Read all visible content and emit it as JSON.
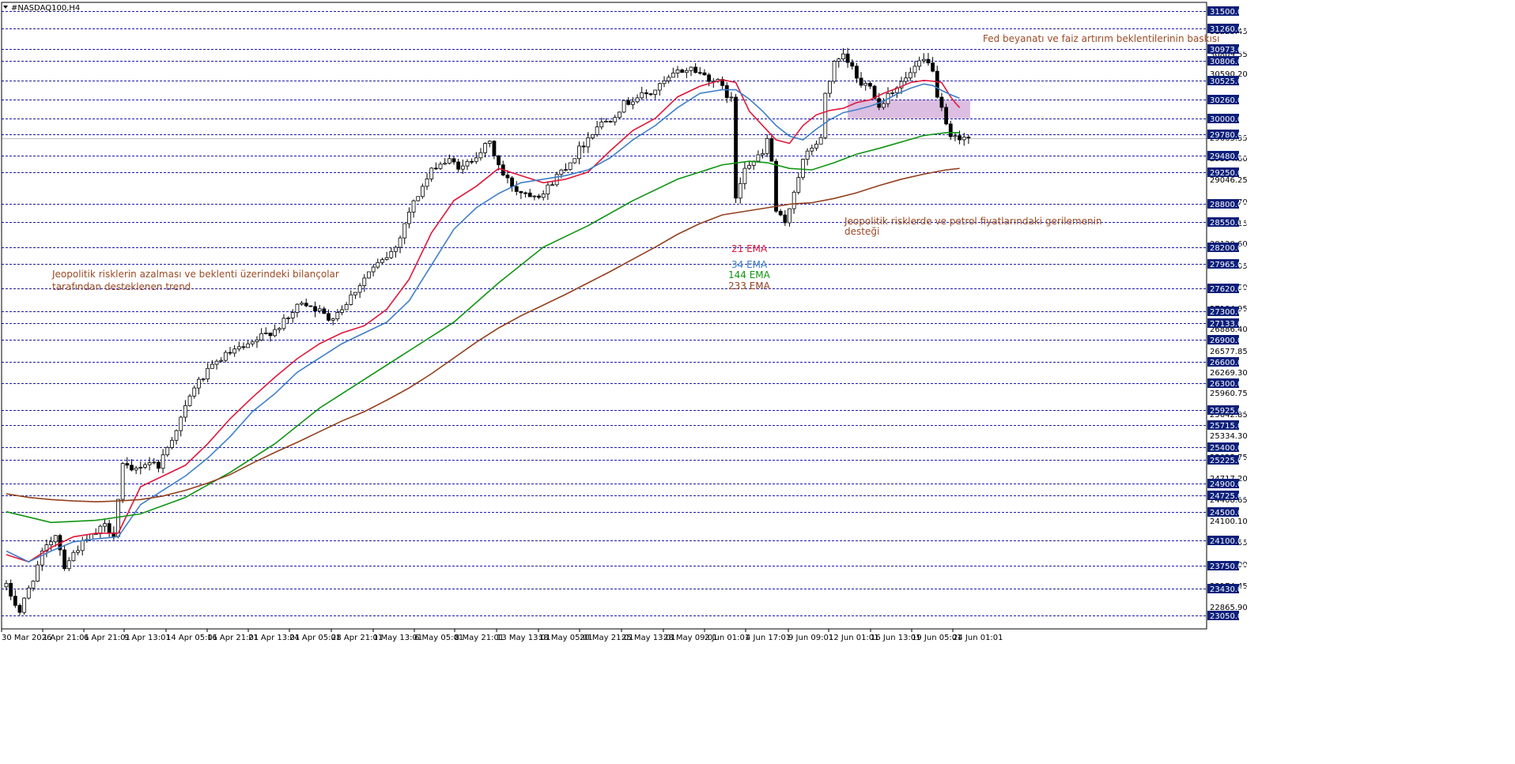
{
  "window": {
    "symbol_label": "#NASDAQ100,H4"
  },
  "chart_data": {
    "type": "candlestick",
    "title": "#NASDAQ100,H4",
    "xlabel": "",
    "ylabel": "",
    "ylim": [
      22800,
      31600
    ],
    "grid": false,
    "colors": {
      "background": "#ffffff",
      "candle": "#000000",
      "level_line": "#1a1aa8",
      "tag_bg": "#0b1f7a",
      "tag_text": "#ffffff",
      "ema21": "#e0173b",
      "ema34": "#3f7fc8",
      "ema144": "#0f9412",
      "ema233": "#93401e",
      "zone_fill": "#d6b3dd",
      "annotation": "#9c4a24",
      "current_price_line": "#bdbdbd"
    },
    "x_ticks": [
      "30 Mar 2026",
      "1 Apr 21:01",
      "6 Apr 21:01",
      "9 Apr 13:01",
      "14 Apr 05:01",
      "16 Apr 21:01",
      "21 Apr 13:01",
      "24 Apr 05:01",
      "28 Apr 21:01",
      "1 May 13:01",
      "6 May 05:01",
      "8 May 21:01",
      "13 May 13:01",
      "18 May 05:01",
      "20 May 21:01",
      "25 May 13:01",
      "28 May 09:01",
      "2 Jun 01:01",
      "4 Jun 17:01",
      "9 Jun 09:01",
      "12 Jun 01:01",
      "16 Jun 13:01",
      "19 Jun 05:01",
      "24 Jun 01:01"
    ],
    "y_axis_labels": [
      "31223.45",
      "30809.55",
      "30590.20",
      "29663.35",
      "29354.80",
      "29046.25",
      "28737.70",
      "28429.15",
      "28120.60",
      "27812.05",
      "27503.50",
      "27194.95",
      "26886.40",
      "26577.85",
      "26269.30",
      "25960.75",
      "25642.85",
      "25334.30",
      "25025.75",
      "24717.20",
      "24408.65",
      "24100.10",
      "23791.55",
      "23483.00",
      "23174.45",
      "22865.90"
    ],
    "levels": [
      31500.0,
      31260.0,
      30973.0,
      30806.0,
      30525.0,
      30260.0,
      30000.0,
      29780.0,
      29480.0,
      29250.0,
      28800.0,
      28550.0,
      28200.0,
      27965.0,
      27620.0,
      27300.0,
      27133.0,
      26900.0,
      26600.0,
      26300.0,
      25925.0,
      25715.0,
      25400.0,
      25225.0,
      24900.0,
      24725.0,
      24500.0,
      24100.0,
      23750.0,
      23430.0,
      23050.0
    ],
    "level_labels": [
      "31500.00",
      "31260.00",
      "30973.00",
      "30806.00",
      "30525.00",
      "30260.00",
      "30000.00",
      "29780.00",
      "29480.00",
      "29250.00",
      "28800.00",
      "28550.00",
      "28200.00",
      "27965.00",
      "27620.00",
      "27300.00",
      "27133.00",
      "26900.00",
      "26600.00",
      "26300.00",
      "25925.00",
      "25715.00",
      "25400.00",
      "25225.00",
      "24900.00",
      "24725.00",
      "24500.00",
      "24100.00",
      "23750.00",
      "23430.00",
      "23050.00"
    ],
    "current_price": 29720,
    "resistance_zone": {
      "low": 30000,
      "high": 30260
    },
    "price_path": [
      [
        0,
        23450
      ],
      [
        3,
        23100
      ],
      [
        8,
        23900
      ],
      [
        11,
        24200
      ],
      [
        13,
        23750
      ],
      [
        16,
        24000
      ],
      [
        19,
        24150
      ],
      [
        22,
        24300
      ],
      [
        24,
        24200
      ],
      [
        26,
        25150
      ],
      [
        28,
        25050
      ],
      [
        30,
        25150
      ],
      [
        32,
        25200
      ],
      [
        34,
        25150
      ],
      [
        36,
        25400
      ],
      [
        39,
        25800
      ],
      [
        42,
        26250
      ],
      [
        45,
        26450
      ],
      [
        48,
        26650
      ],
      [
        51,
        26750
      ],
      [
        54,
        26800
      ],
      [
        57,
        26950
      ],
      [
        60,
        27050
      ],
      [
        63,
        27200
      ],
      [
        66,
        27450
      ],
      [
        69,
        27350
      ],
      [
        72,
        27200
      ],
      [
        75,
        27350
      ],
      [
        78,
        27600
      ],
      [
        81,
        27850
      ],
      [
        84,
        28000
      ],
      [
        87,
        28200
      ],
      [
        90,
        28700
      ],
      [
        93,
        29050
      ],
      [
        96,
        29350
      ],
      [
        99,
        29400
      ],
      [
        102,
        29300
      ],
      [
        105,
        29500
      ],
      [
        108,
        29650
      ],
      [
        111,
        29200
      ],
      [
        114,
        29000
      ],
      [
        117,
        28950
      ],
      [
        120,
        28950
      ],
      [
        123,
        29200
      ],
      [
        126,
        29400
      ],
      [
        129,
        29650
      ],
      [
        132,
        29900
      ],
      [
        135,
        30000
      ],
      [
        138,
        30200
      ],
      [
        141,
        30300
      ],
      [
        144,
        30350
      ],
      [
        147,
        30500
      ],
      [
        150,
        30650
      ],
      [
        153,
        30700
      ],
      [
        156,
        30600
      ],
      [
        159,
        30500
      ],
      [
        162,
        30250
      ],
      [
        163,
        28900
      ],
      [
        165,
        29350
      ],
      [
        167,
        29400
      ],
      [
        169,
        29500
      ],
      [
        170,
        29700
      ],
      [
        171,
        29400
      ],
      [
        172,
        28700
      ],
      [
        174,
        28500
      ],
      [
        176,
        29000
      ],
      [
        178,
        29400
      ],
      [
        180,
        29600
      ],
      [
        182,
        29700
      ],
      [
        183,
        30350
      ],
      [
        185,
        30750
      ],
      [
        187,
        30850
      ],
      [
        189,
        30700
      ],
      [
        191,
        30450
      ],
      [
        193,
        30500
      ],
      [
        195,
        30150
      ],
      [
        197,
        30350
      ],
      [
        199,
        30450
      ],
      [
        201,
        30550
      ],
      [
        203,
        30700
      ],
      [
        205,
        30800
      ],
      [
        207,
        30700
      ],
      [
        208,
        30250
      ],
      [
        209,
        30100
      ],
      [
        210,
        29900
      ],
      [
        211,
        29700
      ],
      [
        213,
        29750
      ],
      [
        215,
        29720
      ]
    ],
    "series": [
      {
        "name": "21 EMA",
        "color": "#e0173b",
        "x": [
          0,
          5,
          10,
          15,
          20,
          25,
          30,
          35,
          40,
          45,
          50,
          55,
          60,
          65,
          70,
          75,
          80,
          85,
          90,
          95,
          100,
          105,
          110,
          115,
          120,
          125,
          130,
          135,
          140,
          145,
          150,
          155,
          160,
          163,
          166,
          169,
          172,
          175,
          178,
          181,
          184,
          187,
          190,
          193,
          196,
          199,
          202,
          205,
          207,
          209,
          210,
          211,
          212,
          213
        ],
        "y": [
          23900,
          23800,
          24000,
          24150,
          24200,
          24200,
          24850,
          25000,
          25150,
          25450,
          25800,
          26100,
          26380,
          26640,
          26850,
          27000,
          27100,
          27330,
          27750,
          28400,
          28850,
          29050,
          29300,
          29200,
          29100,
          29150,
          29250,
          29550,
          29830,
          30000,
          30300,
          30450,
          30540,
          30500,
          30100,
          29900,
          29700,
          29650,
          29900,
          30050,
          30110,
          30140,
          30220,
          30260,
          30350,
          30420,
          30500,
          30530,
          30520,
          30500,
          30400,
          30300,
          30220,
          30150
        ]
      },
      {
        "name": "34 EMA",
        "color": "#3f7fc8",
        "x": [
          0,
          5,
          10,
          15,
          20,
          25,
          30,
          35,
          40,
          45,
          50,
          55,
          60,
          65,
          70,
          75,
          80,
          85,
          90,
          95,
          100,
          105,
          110,
          115,
          120,
          125,
          130,
          135,
          140,
          145,
          150,
          155,
          160,
          163,
          166,
          169,
          172,
          175,
          178,
          181,
          184,
          187,
          190,
          193,
          196,
          199,
          202,
          205,
          207,
          209,
          211,
          213
        ],
        "y": [
          23950,
          23800,
          23950,
          24080,
          24120,
          24150,
          24600,
          24800,
          25000,
          25250,
          25550,
          25900,
          26150,
          26450,
          26650,
          26850,
          27000,
          27150,
          27450,
          27950,
          28450,
          28750,
          28950,
          29100,
          29150,
          29200,
          29280,
          29450,
          29700,
          29900,
          30150,
          30350,
          30400,
          30400,
          30270,
          30100,
          29900,
          29750,
          29700,
          29850,
          29980,
          30080,
          30120,
          30170,
          30240,
          30340,
          30420,
          30480,
          30460,
          30390,
          30330,
          30280
        ]
      },
      {
        "name": "144 EMA",
        "color": "#0f9412",
        "x": [
          0,
          10,
          20,
          30,
          40,
          50,
          60,
          70,
          80,
          90,
          100,
          110,
          120,
          130,
          140,
          150,
          160,
          166,
          170,
          175,
          180,
          185,
          190,
          195,
          200,
          205,
          210,
          213
        ],
        "y": [
          24500,
          24350,
          24380,
          24470,
          24700,
          25050,
          25450,
          25950,
          26350,
          26750,
          27150,
          27700,
          28200,
          28500,
          28850,
          29150,
          29350,
          29400,
          29380,
          29300,
          29280,
          29380,
          29500,
          29580,
          29670,
          29760,
          29800,
          29800
        ]
      },
      {
        "name": "233 EMA",
        "color": "#93401e",
        "x": [
          0,
          5,
          10,
          15,
          20,
          25,
          30,
          35,
          40,
          45,
          50,
          55,
          60,
          65,
          70,
          75,
          80,
          85,
          90,
          95,
          100,
          105,
          110,
          115,
          120,
          125,
          130,
          135,
          140,
          145,
          150,
          155,
          160,
          165,
          170,
          175,
          180,
          185,
          190,
          195,
          200,
          205,
          210,
          213
        ],
        "y": [
          24750,
          24700,
          24670,
          24650,
          24640,
          24650,
          24670,
          24720,
          24800,
          24900,
          25020,
          25180,
          25330,
          25470,
          25620,
          25770,
          25900,
          26060,
          26230,
          26430,
          26650,
          26870,
          27070,
          27240,
          27390,
          27540,
          27700,
          27860,
          28030,
          28200,
          28380,
          28530,
          28650,
          28700,
          28750,
          28800,
          28820,
          28880,
          28960,
          29060,
          29150,
          29220,
          29280,
          29300
        ]
      }
    ],
    "annotations": [
      {
        "text": "Fed beyanatı ve faiz artırım beklentilerinin baskısı"
      },
      {
        "text": "Jeopolitik risklerde ve petrol fiyatlarındaki gerilemenin"
      },
      {
        "text": "desteği"
      },
      {
        "text": "Jeopolitik risklerin azalması ve beklenti üzerindeki bilançolar"
      },
      {
        "text": "tarafından desteklenen trend"
      }
    ],
    "ema_labels": [
      {
        "text": "21 EMA",
        "color": "#e0173b"
      },
      {
        "text": "34 EMA",
        "color": "#3f7fc8"
      },
      {
        "text": "144 EMA",
        "color": "#0f9412"
      },
      {
        "text": "233 EMA",
        "color": "#93401e"
      }
    ]
  }
}
